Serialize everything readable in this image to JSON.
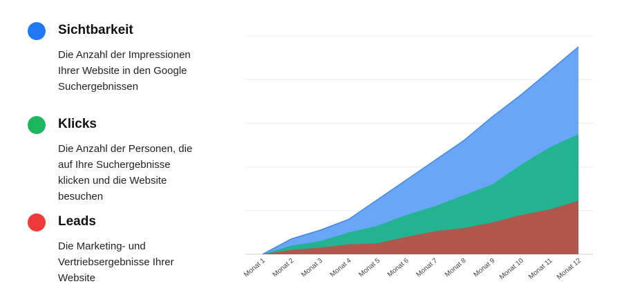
{
  "legend": {
    "items": [
      {
        "title": "Sichtbarkeit",
        "description": "Die Anzahl der Impressionen\nIhrer Website in den Google\nSuchergebnissen",
        "color": "#2178f4"
      },
      {
        "title": "Klicks",
        "description": "Die Anzahl der Personen, die\nauf Ihre Suchergebnisse\nklicken und die Website\nbesuchen",
        "color": "#1db65f"
      },
      {
        "title": "Leads",
        "description": "Die Marketing- und\nVertriebsergebnisse Ihrer\nWebsite",
        "color": "#ef3a3a"
      }
    ]
  },
  "chart_data": {
    "type": "area",
    "categories": [
      "Monat 1",
      "Monat 2",
      "Monat 3",
      "Monat 4",
      "Monat 5",
      "Monat 6",
      "Monat 7",
      "Monat 8",
      "Monat 9",
      "Monat 10",
      "Monat 11",
      "Monat 12"
    ],
    "series": [
      {
        "name": "Sichtbarkeit",
        "values": [
          0,
          7,
          11,
          16,
          25,
          34,
          43,
          52,
          63,
          73,
          84,
          95
        ],
        "color": "#6aa6f8",
        "line_color": "#3d86f0"
      },
      {
        "name": "Klicks",
        "values": [
          0,
          4,
          6,
          10,
          13,
          18,
          22,
          27,
          32,
          41,
          49,
          55
        ],
        "color": "#22b491"
      },
      {
        "name": "Leads",
        "values": [
          0,
          2,
          3,
          4.5,
          5,
          8,
          10.5,
          12,
          14.5,
          18,
          20.5,
          24.5
        ],
        "color": "#b0564c"
      }
    ],
    "ylim": [
      0,
      100
    ],
    "grid": true,
    "stacked": false,
    "title": "",
    "xlabel": "",
    "ylabel": ""
  }
}
